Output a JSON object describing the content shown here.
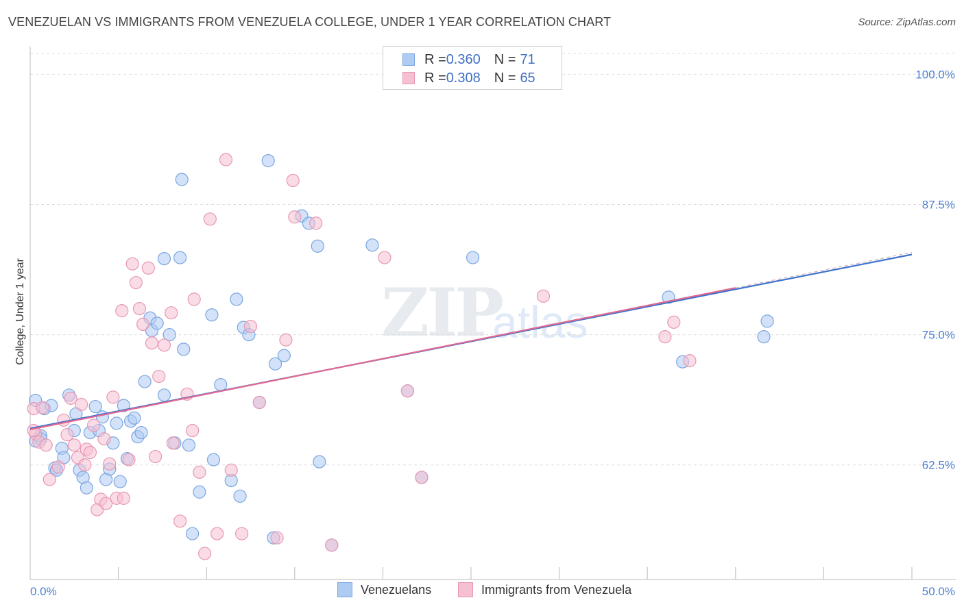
{
  "header": {
    "title": "VENEZUELAN VS IMMIGRANTS FROM VENEZUELA COLLEGE, UNDER 1 YEAR CORRELATION CHART",
    "source": "Source: ZipAtlas.com"
  },
  "watermark": {
    "part1": "ZIP",
    "part2": "atlas"
  },
  "legend": {
    "rows": [
      {
        "r_label": "R = ",
        "r_value": "0.360",
        "n_label": "N = ",
        "n_value": "71"
      },
      {
        "r_label": "R = ",
        "r_value": "0.308",
        "n_label": "N = ",
        "n_value": "65"
      }
    ]
  },
  "bottom_legend": {
    "item1": "Venezuelans",
    "item2": "Immigrants from Venezuela"
  },
  "colors": {
    "blue_fill": "#aecbf2",
    "blue_stroke": "#7aa6e0",
    "blue_line": "#3b73cc",
    "pink_fill": "#f6bfd2",
    "pink_stroke": "#e897b3",
    "pink_line": "#e06992",
    "tick_text": "#4a7fd4",
    "grid": "#dddddd"
  },
  "chart_data": {
    "type": "scatter",
    "title": "VENEZUELAN VS IMMIGRANTS FROM VENEZUELA COLLEGE, UNDER 1 YEAR CORRELATION CHART",
    "xlabel": "",
    "ylabel": "College, Under 1 year",
    "xlim": [
      0,
      50
    ],
    "ylim": [
      51.5,
      102
    ],
    "x_tick_labels": [
      "0.0%",
      "50.0%"
    ],
    "y_ticks": [
      62.5,
      75.0,
      87.5,
      100.0
    ],
    "y_tick_labels": [
      "62.5%",
      "75.0%",
      "87.5%",
      "100.0%"
    ],
    "grid": true,
    "series": [
      {
        "name": "Venezuelans",
        "trend": {
          "x": [
            0,
            50
          ],
          "y": [
            66.0,
            82.7
          ]
        },
        "points": [
          [
            0.3,
            68.7
          ],
          [
            0.3,
            64.8
          ],
          [
            0.6,
            65.3
          ],
          [
            0.8,
            67.9
          ],
          [
            1.2,
            68.2
          ],
          [
            1.4,
            62.2
          ],
          [
            1.5,
            62.0
          ],
          [
            1.8,
            64.1
          ],
          [
            1.9,
            63.2
          ],
          [
            2.2,
            69.2
          ],
          [
            2.5,
            65.8
          ],
          [
            2.6,
            67.4
          ],
          [
            2.8,
            62.0
          ],
          [
            3.0,
            61.3
          ],
          [
            3.2,
            60.3
          ],
          [
            3.4,
            65.6
          ],
          [
            3.7,
            68.1
          ],
          [
            3.9,
            65.8
          ],
          [
            4.1,
            67.1
          ],
          [
            4.3,
            61.1
          ],
          [
            4.5,
            62.1
          ],
          [
            4.7,
            64.6
          ],
          [
            4.9,
            66.5
          ],
          [
            5.1,
            60.9
          ],
          [
            5.3,
            68.2
          ],
          [
            5.5,
            63.1
          ],
          [
            5.7,
            66.7
          ],
          [
            5.9,
            67.0
          ],
          [
            6.1,
            65.2
          ],
          [
            6.3,
            65.6
          ],
          [
            6.5,
            70.5
          ],
          [
            6.8,
            76.6
          ],
          [
            6.9,
            75.4
          ],
          [
            7.2,
            76.1
          ],
          [
            7.6,
            69.2
          ],
          [
            7.6,
            82.3
          ],
          [
            7.9,
            75.0
          ],
          [
            8.2,
            64.6
          ],
          [
            8.5,
            82.4
          ],
          [
            8.6,
            89.9
          ],
          [
            8.7,
            73.6
          ],
          [
            9.0,
            64.4
          ],
          [
            9.2,
            55.9
          ],
          [
            9.6,
            59.9
          ],
          [
            10.3,
            76.9
          ],
          [
            10.4,
            63.0
          ],
          [
            10.8,
            70.2
          ],
          [
            11.4,
            61.0
          ],
          [
            11.7,
            78.4
          ],
          [
            11.9,
            59.5
          ],
          [
            12.1,
            75.7
          ],
          [
            12.4,
            75.0
          ],
          [
            13.0,
            68.5
          ],
          [
            13.5,
            91.7
          ],
          [
            13.8,
            55.5
          ],
          [
            13.9,
            72.2
          ],
          [
            14.4,
            73.0
          ],
          [
            15.4,
            86.4
          ],
          [
            15.8,
            85.7
          ],
          [
            16.3,
            83.5
          ],
          [
            16.4,
            62.8
          ],
          [
            17.1,
            54.8
          ],
          [
            19.4,
            83.6
          ],
          [
            21.4,
            69.6
          ],
          [
            22.2,
            61.3
          ],
          [
            25.1,
            82.4
          ],
          [
            36.2,
            78.6
          ],
          [
            37.0,
            72.4
          ],
          [
            41.6,
            74.8
          ],
          [
            41.8,
            76.3
          ],
          [
            0.6,
            65.0
          ]
        ]
      },
      {
        "name": "Immigrants from Venezuela",
        "trend": {
          "x": [
            0,
            40
          ],
          "y": [
            65.9,
            79.5
          ]
        },
        "points": [
          [
            0.2,
            67.9
          ],
          [
            0.3,
            65.5
          ],
          [
            0.5,
            64.7
          ],
          [
            0.7,
            68.0
          ],
          [
            0.9,
            64.4
          ],
          [
            1.1,
            61.1
          ],
          [
            1.6,
            62.3
          ],
          [
            1.9,
            66.8
          ],
          [
            2.1,
            65.4
          ],
          [
            2.3,
            68.9
          ],
          [
            2.5,
            64.4
          ],
          [
            2.7,
            63.2
          ],
          [
            2.9,
            68.3
          ],
          [
            3.1,
            62.5
          ],
          [
            3.2,
            64.0
          ],
          [
            3.4,
            63.7
          ],
          [
            3.6,
            66.3
          ],
          [
            3.8,
            58.2
          ],
          [
            4.0,
            59.2
          ],
          [
            4.2,
            65.0
          ],
          [
            4.3,
            58.8
          ],
          [
            4.5,
            62.6
          ],
          [
            4.7,
            69.0
          ],
          [
            4.9,
            59.3
          ],
          [
            5.2,
            77.3
          ],
          [
            5.3,
            59.3
          ],
          [
            5.6,
            63.0
          ],
          [
            5.8,
            81.8
          ],
          [
            6.0,
            80.0
          ],
          [
            6.2,
            77.5
          ],
          [
            6.4,
            76.0
          ],
          [
            6.7,
            81.4
          ],
          [
            6.9,
            74.2
          ],
          [
            7.1,
            63.3
          ],
          [
            7.3,
            71.0
          ],
          [
            7.6,
            74.0
          ],
          [
            8.0,
            77.1
          ],
          [
            8.1,
            64.6
          ],
          [
            8.5,
            57.1
          ],
          [
            8.9,
            69.3
          ],
          [
            9.2,
            65.8
          ],
          [
            9.3,
            78.4
          ],
          [
            9.6,
            61.8
          ],
          [
            9.9,
            54.0
          ],
          [
            10.2,
            86.1
          ],
          [
            10.6,
            55.9
          ],
          [
            11.1,
            91.8
          ],
          [
            11.4,
            62.0
          ],
          [
            12.0,
            55.9
          ],
          [
            12.5,
            75.8
          ],
          [
            13.0,
            68.5
          ],
          [
            14.0,
            55.5
          ],
          [
            14.5,
            74.5
          ],
          [
            14.9,
            89.8
          ],
          [
            15.0,
            86.3
          ],
          [
            16.2,
            85.7
          ],
          [
            17.1,
            54.8
          ],
          [
            20.1,
            82.4
          ],
          [
            21.4,
            69.6
          ],
          [
            22.2,
            61.3
          ],
          [
            29.1,
            78.7
          ],
          [
            36.0,
            74.8
          ],
          [
            36.5,
            76.2
          ],
          [
            37.4,
            72.5
          ],
          [
            0.2,
            65.8
          ]
        ]
      }
    ]
  }
}
